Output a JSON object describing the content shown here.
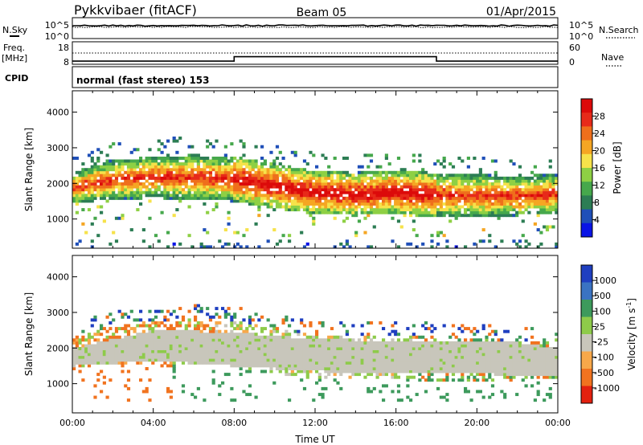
{
  "header": {
    "radar": "Pykkvibaer (fitACF)",
    "beam": "Beam 05",
    "date": "01/Apr/2015"
  },
  "noise_panel": {
    "left_label": "N.Sky",
    "right_label": "N.Search",
    "left_ticks": [
      "10^5",
      "10^0"
    ],
    "right_ticks": [
      "10^5",
      "10^0"
    ]
  },
  "freq_panel": {
    "left_label": "Freq.",
    "left_unit": "[MHz]",
    "right_label": "Nave",
    "left_ticks": [
      "18",
      "8"
    ],
    "right_ticks": [
      "60",
      "0"
    ],
    "frequency_steps": [
      {
        "t_start": 0,
        "t_end": 8,
        "mhz": 9.2
      },
      {
        "t_start": 8,
        "t_end": 18,
        "mhz": 12.6
      },
      {
        "t_start": 18,
        "t_end": 24,
        "mhz": 9.2
      }
    ]
  },
  "cpid": {
    "label": "CPID",
    "mode": "normal (fast stereo) 153"
  },
  "chart_data": [
    {
      "type": "heatmap",
      "quantity": "Power",
      "ylabel": "Slant Range [km]",
      "yticks": [
        "4000",
        "3000",
        "2000",
        "1000"
      ],
      "ylim": [
        180,
        4600
      ],
      "xlim": [
        0,
        24
      ],
      "colorbar_label": "Power [dB]",
      "colorbar_ticks": [
        "28",
        "24",
        "20",
        "16",
        "12",
        "8",
        "4"
      ],
      "colorbar_range": [
        0,
        32
      ],
      "colorbar_colors": [
        "#0a14e6",
        "#1f4fb8",
        "#2c7d54",
        "#46a84c",
        "#8ed044",
        "#f6e24a",
        "#f5a623",
        "#ef6f1c",
        "#e72a1a",
        "#dc0a0a"
      ],
      "main_echo_band": [
        {
          "t": 0,
          "low": 1450,
          "high": 2300
        },
        {
          "t": 2,
          "low": 1550,
          "high": 2650
        },
        {
          "t": 4,
          "low": 1600,
          "high": 2750
        },
        {
          "t": 6,
          "low": 1550,
          "high": 2800
        },
        {
          "t": 8,
          "low": 1500,
          "high": 2750
        },
        {
          "t": 10,
          "low": 1300,
          "high": 2550
        },
        {
          "t": 12,
          "low": 1150,
          "high": 2350
        },
        {
          "t": 14,
          "low": 1100,
          "high": 2300
        },
        {
          "t": 16,
          "low": 1150,
          "high": 2350
        },
        {
          "t": 18,
          "low": 1050,
          "high": 2300
        },
        {
          "t": 20,
          "low": 1050,
          "high": 2250
        },
        {
          "t": 22,
          "low": 1100,
          "high": 2200
        },
        {
          "t": 24,
          "low": 1150,
          "high": 2250
        }
      ]
    },
    {
      "type": "heatmap",
      "quantity": "Velocity",
      "ylabel": "Slant Range [km]",
      "yticks": [
        "4000",
        "3000",
        "2000",
        "1000"
      ],
      "ylim": [
        180,
        4600
      ],
      "xlim": [
        0,
        24
      ],
      "xticks": [
        "00:00",
        "04:00",
        "08:00",
        "12:00",
        "16:00",
        "20:00",
        "00:00"
      ],
      "xlabel": "Time UT",
      "colorbar_label": "Velocity [m s",
      "colorbar_label_sup": "-1",
      "colorbar_label_end": "]",
      "colorbar_ticks": [
        "1000",
        "500",
        "100",
        "25",
        "-25",
        "-100",
        "-500",
        "-1000"
      ],
      "colorbar_colors": [
        "#1f3fc0",
        "#3a73c2",
        "#3d9a5c",
        "#8ecb4a",
        "#c8c6bb",
        "#f8a84a",
        "#f1731f",
        "#e3210f"
      ],
      "ground_scatter_band": [
        {
          "t": 0,
          "low": 1500,
          "high": 2000
        },
        {
          "t": 4,
          "low": 1650,
          "high": 2500
        },
        {
          "t": 8,
          "low": 1500,
          "high": 2450
        },
        {
          "t": 12,
          "low": 1350,
          "high": 2250
        },
        {
          "t": 16,
          "low": 1300,
          "high": 2200
        },
        {
          "t": 18,
          "low": 1300,
          "high": 2150
        },
        {
          "t": 22,
          "low": 1250,
          "high": 2150
        },
        {
          "t": 24,
          "low": 1250,
          "high": 2000
        }
      ]
    }
  ]
}
